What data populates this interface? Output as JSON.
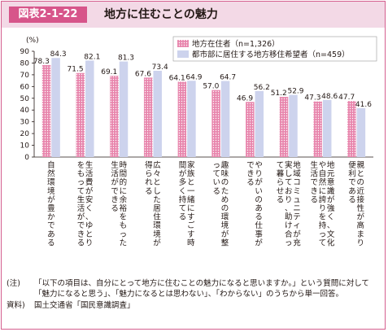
{
  "figure": {
    "id": "図表2-1-22",
    "title": "地方に住むことの魅力"
  },
  "chart_data": {
    "type": "bar",
    "y_unit": "(%)",
    "ylim": [
      0,
      90
    ],
    "yticks": [
      0,
      10,
      20,
      30,
      40,
      50,
      60,
      70,
      80,
      90
    ],
    "grid": false,
    "legend_position": "top-right",
    "categories": [
      "自然環境が豊かである",
      "生活費が安く、ゆとりをもって生活ができる",
      "時間的に余裕をもった生活ができる",
      "広々とした居住環境が得られる",
      "家族と一緒にすごす時間が多く持てる",
      "趣味のための環境が整っている",
      "やりがいのある仕事ができる",
      "地域コミュニティが充実しており、助け合って暮らせる",
      "地元意識が強く、文化や自然に誇りを持って生活できる",
      "親との近接性が高まり便利である"
    ],
    "series": [
      {
        "name": "地方在住者（n=1,326）",
        "color": "#e886ad",
        "pattern": "dots",
        "values": [
          78.3,
          71.5,
          69.1,
          67.6,
          64.1,
          57.0,
          46.9,
          51.2,
          47.3,
          47.7
        ],
        "labels": [
          "78.3",
          "71.5",
          "69.1",
          "67.6",
          "64.1",
          "57.0",
          "46.9",
          "51.2",
          "47.3",
          "47.7"
        ]
      },
      {
        "name": "都市部に居住する地方移住希望者（n=459）",
        "color": "#cdd3ed",
        "pattern": "solid",
        "values": [
          84.3,
          82.1,
          81.3,
          73.4,
          64.9,
          64.7,
          56.2,
          52.9,
          48.6,
          41.6
        ],
        "labels": [
          "84.3",
          "82.1",
          "81.3",
          "73.4",
          "64.9",
          "64.7",
          "56.2",
          "52.9",
          "48.6",
          "41.6"
        ]
      }
    ]
  },
  "notes": {
    "note_label": "(注)",
    "note_text": "「以下の項目は、自分にとって地方に住むことの魅力になると思いますか。」という質問に対して「魅力になると思う」、「魅力になるとは思わない」、「わからない」のうちから単一回答。",
    "source_label": "資料)",
    "source_text": "国土交通省「国民意識調査」"
  }
}
